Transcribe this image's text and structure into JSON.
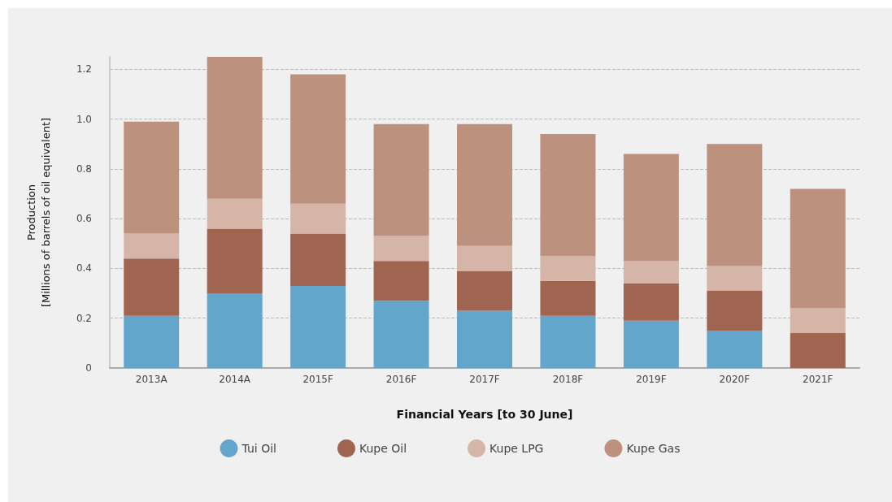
{
  "chart_data": {
    "type": "bar",
    "stacked": true,
    "xlabel": "Financial Years [to 30 June]",
    "ylabel": "Production\n[Millions of barrels of oil equivalent]",
    "categories": [
      "2013A",
      "2014A",
      "2015F",
      "2016F",
      "2017F",
      "2018F",
      "2019F",
      "2020F",
      "2021F"
    ],
    "series": [
      {
        "name": "Tui Oil",
        "color": "#64a5cb",
        "values": [
          0.21,
          0.3,
          0.33,
          0.27,
          0.23,
          0.21,
          0.19,
          0.15,
          0
        ]
      },
      {
        "name": "Kupe Oil",
        "color": "#a06550",
        "values": [
          0.23,
          0.26,
          0.21,
          0.16,
          0.16,
          0.14,
          0.15,
          0.16,
          0.14
        ]
      },
      {
        "name": "Kupe LPG",
        "color": "#d4b5a8",
        "values": [
          0.1,
          0.12,
          0.12,
          0.1,
          0.1,
          0.1,
          0.09,
          0.1,
          0.1
        ]
      },
      {
        "name": "Kupe Gas",
        "color": "#bc917e",
        "values": [
          0.45,
          0.57,
          0.52,
          0.45,
          0.49,
          0.49,
          0.43,
          0.49,
          0.48
        ]
      }
    ],
    "ylim": [
      0,
      1.25
    ],
    "yticks": [
      0,
      0.2,
      0.4,
      0.6,
      0.8,
      {
        "value": 1,
        "label": "1.0"
      },
      1.2
    ],
    "grid": "y",
    "legend": "bottom"
  }
}
